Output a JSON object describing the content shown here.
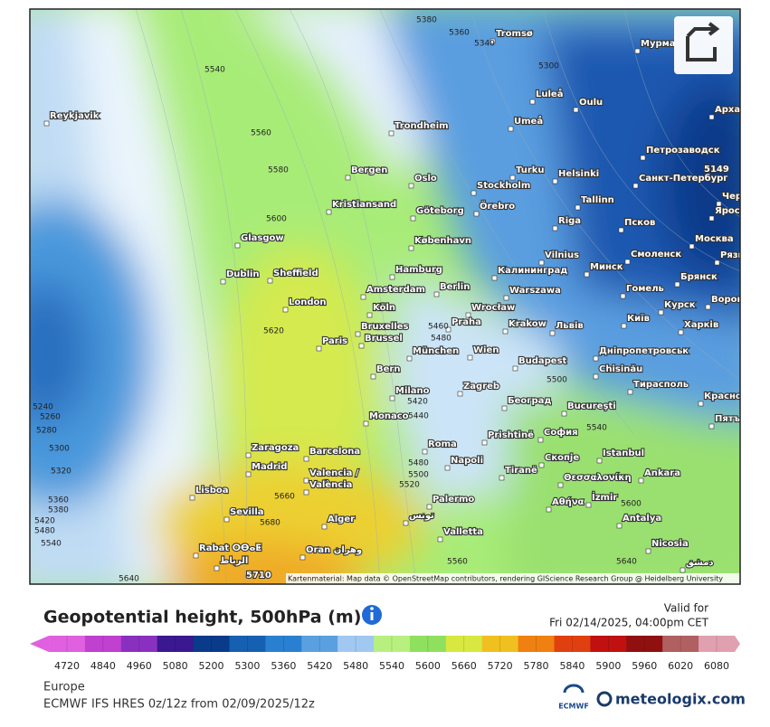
{
  "map": {
    "cities": [
      "Reykjavik",
      "Tromsø",
      "Мурма",
      "Luleå",
      "Oulu",
      "Umeå",
      "Trondheim",
      "Архан",
      "Петрозаводск",
      "Bergen",
      "Turku",
      "Helsinki",
      "Санкт-Петербург",
      "Oslo",
      "Stockholm",
      "Tallinn",
      "Kristiansand",
      "Göteborg",
      "Örebro",
      "Чер",
      "Riga",
      "Псков",
      "Яросл",
      "Glasgow",
      "København",
      "Vilnius",
      "Смоленск",
      "Москва",
      "Dublin",
      "Sheffield",
      "Hamburg",
      "Калининград",
      "Минск",
      "Брянск",
      "Рязь",
      "London",
      "Amsterdam",
      "Berlin",
      "Warszawa",
      "Гомель",
      "Ворон",
      "Köln",
      "Wrocław",
      "Курск",
      "Bruxelles",
      "Brussel",
      "Praha",
      "Krakow",
      "Львів",
      "Київ",
      "Харків",
      "Paris",
      "München",
      "Wien",
      "Дніпропетровськ",
      "Bern",
      "Budapest",
      "Chisinău",
      "Milano",
      "Zagreb",
      "Тирасполь",
      "Красно",
      "Monaco",
      "Београд",
      "Bucureşti",
      "Пятъ",
      "Prishtinë",
      "София",
      "Roma",
      "Zaragoza",
      "Barcelona",
      "Istanbul",
      "Madrid",
      "Napoli",
      "Tiranë",
      "Скопје",
      "Θεσσαλονίκη",
      "Ankara",
      "Valencia /",
      "València",
      "Lisboa",
      "Αθήνα",
      "İzmir",
      "Palermo",
      "Sevilla",
      "تونس",
      "Antalya",
      "Alger",
      "Valletta",
      "Nicosia",
      "Rabat ⵔⴱⴰⵟ",
      "الرباط",
      "Oran وهران",
      "دمشق"
    ],
    "contour_labels": [
      5380,
      5360,
      5340,
      5300,
      5540,
      5560,
      5580,
      5600,
      5620,
      5460,
      5480,
      5500,
      5540,
      5420,
      5440,
      5480,
      5500,
      5520,
      5660,
      5680,
      5600,
      5640,
      5640,
      5560,
      5240,
      5260,
      5280,
      5300,
      5320,
      5360,
      5380,
      5420,
      5480,
      5540
    ],
    "highlight_labels": [
      5149,
      5710
    ],
    "attribution": "Kartenmaterial: Map data © OpenStreetMap contributors, rendering GIScience Research Group @ Heidelberg University"
  },
  "legend": {
    "title": "Geopotential height, 500hPa (m)",
    "valid_label": "Valid for",
    "valid_time": "Fri 02/14/2025, 04:00pm CET",
    "ticks": [
      4720,
      4840,
      4960,
      5080,
      5200,
      5300,
      5360,
      5420,
      5480,
      5540,
      5600,
      5660,
      5720,
      5780,
      5840,
      5900,
      5960,
      6020,
      6080
    ],
    "colors": [
      "#e060e0",
      "#c040d0",
      "#8a30c0",
      "#3a1890",
      "#0a3a8a",
      "#1560b0",
      "#2a80d0",
      "#5aa0e0",
      "#a0c8f0",
      "#b8f080",
      "#90e060",
      "#d8e840",
      "#f0c020",
      "#f08010",
      "#e04010",
      "#c01010",
      "#901010",
      "#b06060",
      "#e0a0b0"
    ]
  },
  "footer": {
    "region": "Europe",
    "model": "ECMWF IFS HRES 0z/12z from 02/09/2025/12z",
    "ecmwf": "ECMWF",
    "brand": "meteologix.com"
  }
}
